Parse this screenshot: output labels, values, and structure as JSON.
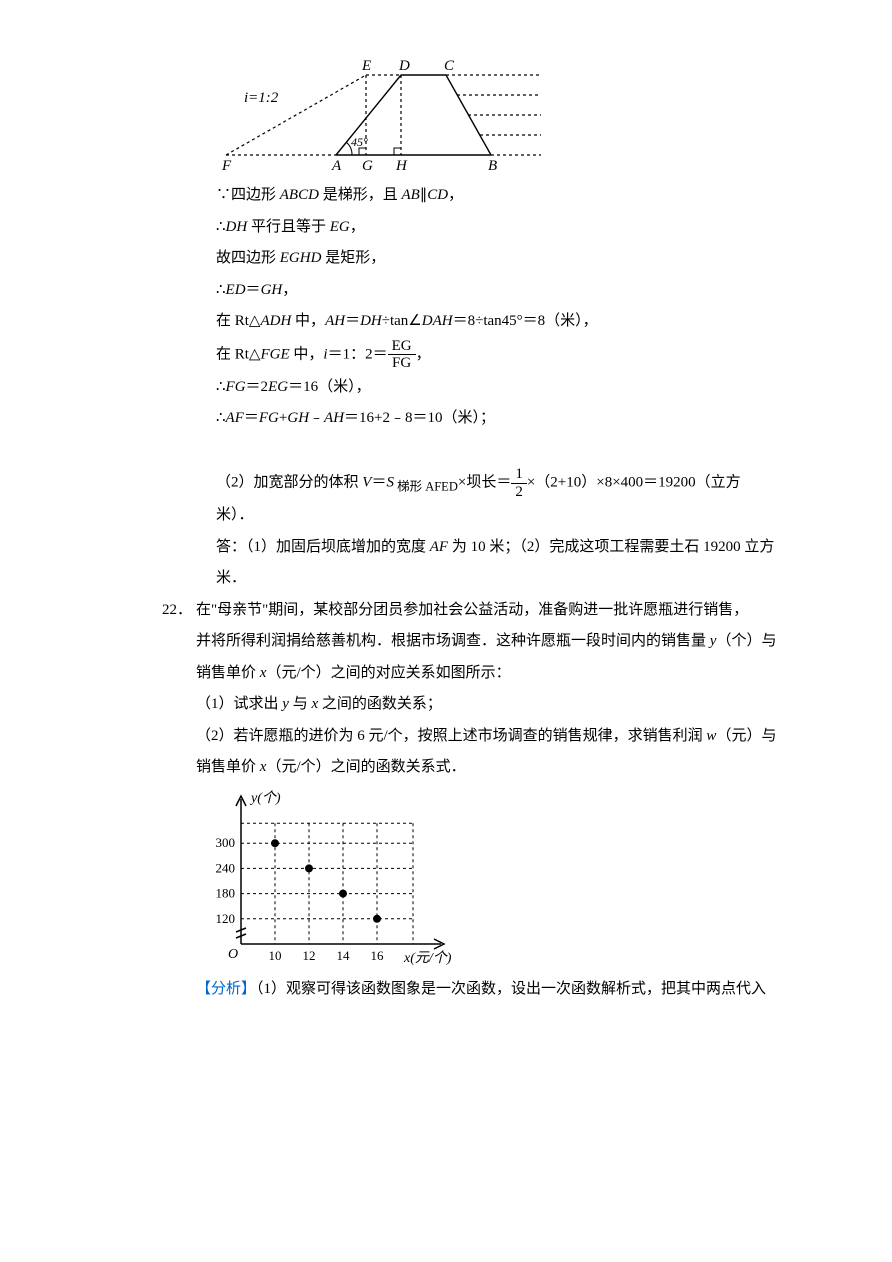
{
  "fig1": {
    "label_E": "E",
    "label_D": "D",
    "label_C": "C",
    "label_F": "F",
    "label_A": "A",
    "label_G": "G",
    "label_H": "H",
    "label_B": "B",
    "slope_label": "i=1:2",
    "angle_label": "45°"
  },
  "sol": {
    "l1_a": "∵四边形 ",
    "l1_b": "ABCD",
    "l1_c": " 是梯形，且 ",
    "l1_d": "AB",
    "l1_e": "∥",
    "l1_f": "CD",
    "l1_g": "，",
    "l2_a": "∴",
    "l2_b": "DH",
    "l2_c": " 平行且等于 ",
    "l2_d": "EG",
    "l2_e": "，",
    "l3_a": "故四边形 ",
    "l3_b": "EGHD",
    "l3_c": " 是矩形，",
    "l4_a": "∴",
    "l4_b": "ED",
    "l4_c": "＝",
    "l4_d": "GH",
    "l4_e": "，",
    "l5_a": "在 Rt△",
    "l5_b": "ADH",
    "l5_c": " 中，",
    "l5_d": "AH",
    "l5_e": "＝",
    "l5_f": "DH",
    "l5_g": "÷tan∠",
    "l5_h": "DAH",
    "l5_i": "＝8÷tan45°＝8（米），",
    "l6_a": "在 Rt△",
    "l6_b": "FGE",
    "l6_c": " 中，",
    "l6_d": "i",
    "l6_e": "＝1：2＝",
    "frac1_num": "EG",
    "frac1_den": "FG",
    "l6_f": "，",
    "l7_a": "∴",
    "l7_b": "FG",
    "l7_c": "＝2",
    "l7_d": "EG",
    "l7_e": "＝16（米），",
    "l8_a": "∴",
    "l8_b": "AF",
    "l8_c": "＝",
    "l8_d": "FG",
    "l8_e": "+",
    "l8_f": "GH",
    "l8_g": "﹣",
    "l8_h": "AH",
    "l8_i": "＝16+2﹣8＝10（米）；",
    "l9_a": "（2）加宽部分的体积 ",
    "l9_b": "V",
    "l9_c": "＝",
    "l9_d": "S",
    "l9_sub": " 梯形 AFED",
    "l9_e": "×坝长＝",
    "frac2_num": "1",
    "frac2_den": "2",
    "l9_f": "×（2+10）×8×400＝19200（立方",
    "l10": "米）．",
    "l11_a": "答：（1）加固后坝底增加的宽度 ",
    "l11_b": "AF",
    "l11_c": " 为 10 米；（2）完成这项工程需要土石 19200 立方",
    "l12": "米．"
  },
  "q22": {
    "num": "22．",
    "p1_a": "在\"母亲节\"期间，某校部分团员参加社会公益活动，准备购进一批许愿瓶进行销售，",
    "p2_a": "并将所得利润捐给慈善机构．根据市场调查．这种许愿瓶一段时间内的销售量 ",
    "p2_b": "y",
    "p2_c": "（个）与",
    "p3_a": "销售单价 ",
    "p3_b": "x",
    "p3_c": "（元/个）之间的对应关系如图所示：",
    "p4_a": "（1）试求出 ",
    "p4_b": "y",
    "p4_c": " 与 ",
    "p4_d": "x",
    "p4_e": " 之间的函数关系；",
    "p5_a": "（2）若许愿瓶的进价为 6 元/个，按照上述市场调查的销售规律，求销售利润 ",
    "p5_b": "w",
    "p5_c": "（元）与",
    "p6_a": "销售单价 ",
    "p6_b": "x",
    "p6_c": "（元/个）之间的函数关系式．"
  },
  "chart": {
    "y_label": "y(个)",
    "x_label": "x(元/个)",
    "y_ticks": [
      "300",
      "240",
      "180",
      "120"
    ],
    "x_ticks": [
      "10",
      "12",
      "14",
      "16"
    ],
    "origin": "O",
    "points": [
      {
        "x": 10,
        "y": 300
      },
      {
        "x": 12,
        "y": 240
      },
      {
        "x": 14,
        "y": 180
      },
      {
        "x": 16,
        "y": 120
      }
    ],
    "grid_color": "#000000",
    "dash": "3,3"
  },
  "analysis": {
    "tag": "【分析】",
    "text": "（1）观察可得该函数图象是一次函数，设出一次函数解析式，把其中两点代入"
  }
}
